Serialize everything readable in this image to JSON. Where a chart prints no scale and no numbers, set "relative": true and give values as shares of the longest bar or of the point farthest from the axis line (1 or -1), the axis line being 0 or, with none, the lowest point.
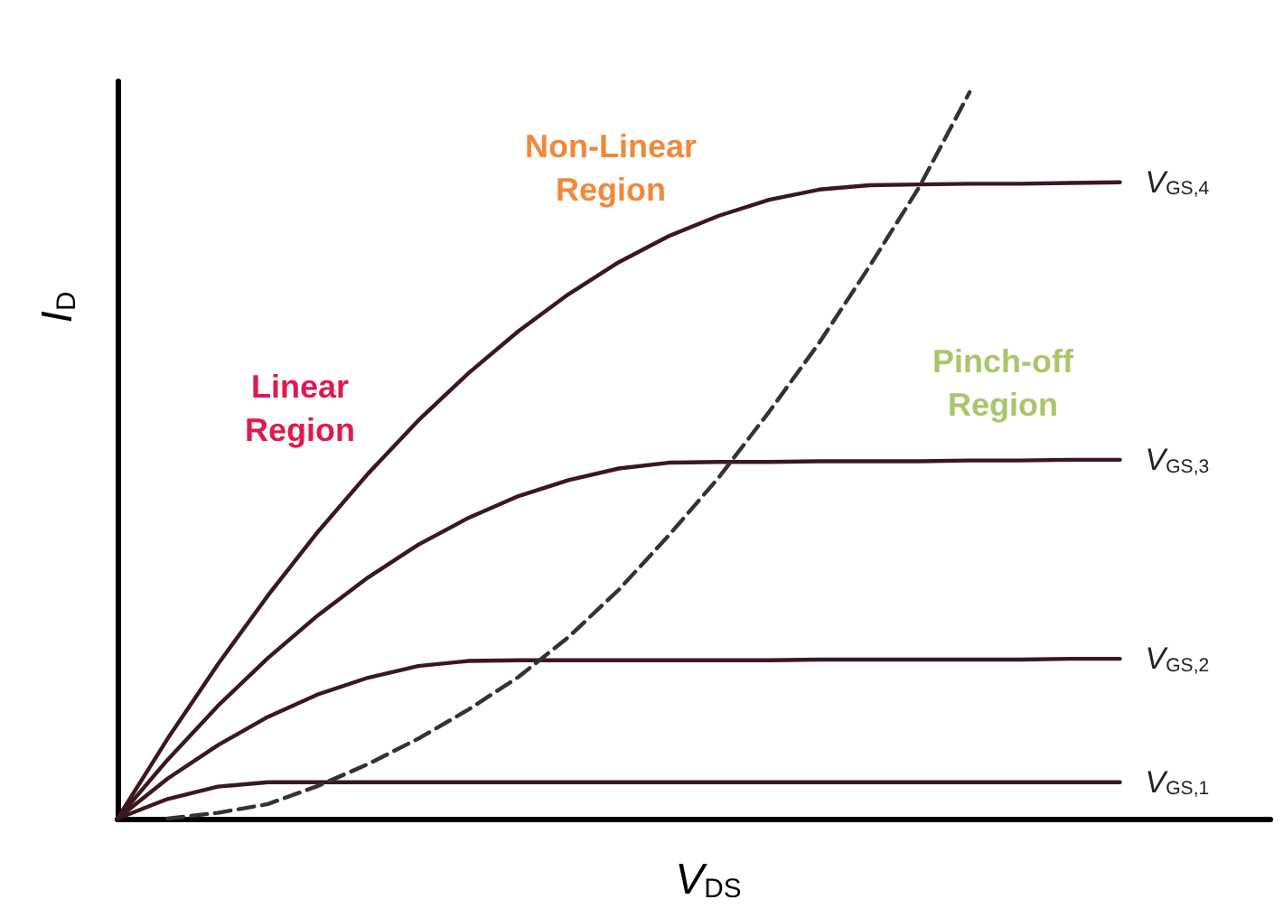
{
  "chart_data": {
    "type": "line",
    "relative": true,
    "xlabel": "V$_{DS}$",
    "ylabel": "I$_{D}$",
    "tick_labels": false,
    "grid": false,
    "legend": false,
    "marker": "none",
    "categories": [
      null,
      null,
      null,
      null,
      null,
      null,
      null,
      null,
      null,
      null,
      null,
      null,
      null,
      null,
      null,
      null,
      null,
      null,
      null,
      null,
      null,
      null,
      null,
      null
    ],
    "annotations": [
      "Linear Region",
      "Non-Linear Region",
      "Pinch-off Region"
    ],
    "series": [
      {
        "name": "V$_{GS,4}$",
        "color": "#3a1820",
        "line_style": "solid",
        "values": [
          0,
          0.11,
          0.212,
          0.307,
          0.395,
          0.475,
          0.548,
          0.613,
          0.671,
          0.722,
          0.766,
          0.802,
          0.83,
          0.852,
          0.866,
          0.872,
          0.873,
          0.874,
          0.874,
          0.875,
          0.876,
          null,
          null,
          null
        ]
      },
      {
        "name": "V$_{GS,3}$",
        "color": "#3a1820",
        "line_style": "solid",
        "values": [
          0,
          0.081,
          0.155,
          0.221,
          0.28,
          0.332,
          0.377,
          0.414,
          0.444,
          0.466,
          0.482,
          0.49,
          0.491,
          0.491,
          0.492,
          0.492,
          0.492,
          0.493,
          0.493,
          0.494,
          0.494,
          null,
          null,
          null
        ]
      },
      {
        "name": "V$_{GS,2}$",
        "color": "#3a1820",
        "line_style": "solid",
        "values": [
          0,
          0.055,
          0.101,
          0.14,
          0.171,
          0.194,
          0.21,
          0.217,
          0.218,
          0.218,
          0.218,
          0.218,
          0.218,
          0.218,
          0.219,
          0.219,
          0.219,
          0.219,
          0.219,
          0.22,
          0.22,
          null,
          null,
          null
        ]
      },
      {
        "name": "V$_{GS,1}$",
        "color": "#3a1820",
        "line_style": "solid",
        "values": [
          0,
          0.027,
          0.044,
          0.05,
          0.05,
          0.05,
          0.05,
          0.05,
          0.05,
          0.05,
          0.05,
          0.05,
          0.05,
          0.05,
          0.05,
          0.05,
          0.05,
          0.05,
          0.05,
          0.05,
          0.05,
          null,
          null,
          null
        ]
      },
      {
        "color": "#333333",
        "line_style": "dashed",
        "values": [
          null,
          0,
          0.008,
          0.02,
          0.045,
          0.075,
          0.11,
          0.15,
          0.195,
          0.25,
          0.315,
          0.39,
          0.47,
          0.56,
          0.655,
          0.76,
          0.87,
          1.0,
          null,
          null,
          null,
          null,
          null,
          null
        ]
      }
    ]
  }
}
